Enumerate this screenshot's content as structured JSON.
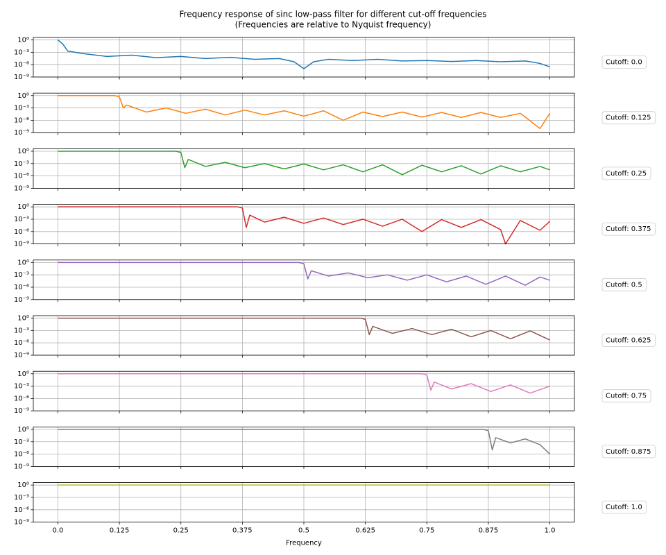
{
  "chart_data": [
    {
      "type": "line",
      "title": "Frequency response of sinc low-pass filter for different cut-off frequencies",
      "subtitle": "(Frequencies are relative to Nyquist frequency)",
      "log_y": true,
      "grid": true,
      "legend": "right",
      "xlim": [
        -0.05,
        1.05
      ],
      "xticks": [
        0,
        0.125,
        0.25,
        0.375,
        0.5,
        0.625,
        0.75,
        0.875,
        1
      ],
      "ylim": [
        1e-09,
        4
      ],
      "yticks": [
        {
          "value": 1,
          "label": "10⁰"
        },
        {
          "value": 0.001,
          "label": "10⁻³"
        },
        {
          "value": 1e-06,
          "label": "10⁻⁶"
        },
        {
          "value": 1e-09,
          "label": "10⁻⁹"
        }
      ],
      "x": [
        0,
        0.01,
        0.02,
        0.05,
        0.1,
        0.15,
        0.2,
        0.25,
        0.3,
        0.35,
        0.4,
        0.45,
        0.48,
        0.5,
        0.52,
        0.55,
        0.6,
        0.65,
        0.7,
        0.75,
        0.8,
        0.85,
        0.9,
        0.95,
        0.98,
        1.0
      ],
      "series": [
        {
          "name": "Cutoff: 0.0",
          "color": "#1f77b4",
          "values": [
            1,
            0.1,
            0.002,
            0.0005,
            0.0001,
            0.0002,
            5e-05,
            0.0001,
            3e-05,
            6e-05,
            2e-05,
            3e-05,
            5e-06,
            1e-07,
            5e-06,
            2e-05,
            1e-05,
            2e-05,
            8e-06,
            1e-05,
            6e-06,
            1e-05,
            5e-06,
            8e-06,
            2e-06,
            3e-07
          ]
        }
      ]
    },
    {
      "type": "line",
      "log_y": true,
      "grid": true,
      "legend": "right",
      "xlim": [
        -0.05,
        1.05
      ],
      "xticks": [
        0,
        0.125,
        0.25,
        0.375,
        0.5,
        0.625,
        0.75,
        0.875,
        1
      ],
      "ylim": [
        1e-09,
        4
      ],
      "yticks": [
        {
          "value": 1,
          "label": "10⁰"
        },
        {
          "value": 0.001,
          "label": "10⁻³"
        },
        {
          "value": 1e-06,
          "label": "10⁻⁶"
        },
        {
          "value": 1e-09,
          "label": "10⁻⁹"
        }
      ],
      "x": [
        0,
        0.115,
        0.125,
        0.133,
        0.14,
        0.18,
        0.22,
        0.26,
        0.3,
        0.34,
        0.38,
        0.42,
        0.46,
        0.5,
        0.54,
        0.58,
        0.62,
        0.66,
        0.7,
        0.74,
        0.78,
        0.82,
        0.86,
        0.9,
        0.94,
        0.98,
        1.0
      ],
      "series": [
        {
          "name": "Cutoff: 0.125",
          "color": "#ff7f0e",
          "values": [
            1,
            1,
            0.5,
            0.001,
            0.005,
            0.0001,
            0.001,
            5e-05,
            0.0005,
            2e-05,
            0.0003,
            2e-05,
            0.0002,
            1e-05,
            0.0002,
            1e-06,
            0.0001,
            8e-06,
            0.0001,
            6e-06,
            8e-05,
            5e-06,
            8e-05,
            5e-06,
            5e-05,
            1e-08,
            5e-05
          ]
        }
      ]
    },
    {
      "type": "line",
      "log_y": true,
      "grid": true,
      "legend": "right",
      "xlim": [
        -0.05,
        1.05
      ],
      "xticks": [
        0,
        0.125,
        0.25,
        0.375,
        0.5,
        0.625,
        0.75,
        0.875,
        1
      ],
      "ylim": [
        1e-09,
        4
      ],
      "yticks": [
        {
          "value": 1,
          "label": "10⁰"
        },
        {
          "value": 0.001,
          "label": "10⁻³"
        },
        {
          "value": 1e-06,
          "label": "10⁻⁶"
        },
        {
          "value": 1e-09,
          "label": "10⁻⁹"
        }
      ],
      "x": [
        0,
        0.24,
        0.25,
        0.258,
        0.265,
        0.3,
        0.34,
        0.38,
        0.42,
        0.46,
        0.5,
        0.54,
        0.58,
        0.62,
        0.66,
        0.7,
        0.74,
        0.78,
        0.82,
        0.86,
        0.9,
        0.94,
        0.98,
        1.0
      ],
      "series": [
        {
          "name": "Cutoff: 0.25",
          "color": "#2ca02c",
          "values": [
            1,
            1,
            0.5,
            0.0001,
            0.01,
            0.0002,
            0.002,
            0.0001,
            0.001,
            5e-05,
            0.0008,
            3e-05,
            0.0005,
            1e-05,
            0.0005,
            2e-06,
            0.0004,
            1e-05,
            0.0003,
            3e-06,
            0.0003,
            1e-05,
            0.0002,
            3e-05
          ]
        }
      ]
    },
    {
      "type": "line",
      "log_y": true,
      "grid": true,
      "legend": "right",
      "xlim": [
        -0.05,
        1.05
      ],
      "xticks": [
        0,
        0.125,
        0.25,
        0.375,
        0.5,
        0.625,
        0.75,
        0.875,
        1
      ],
      "ylim": [
        1e-09,
        4
      ],
      "yticks": [
        {
          "value": 1,
          "label": "10⁰"
        },
        {
          "value": 0.001,
          "label": "10⁻³"
        },
        {
          "value": 1e-06,
          "label": "10⁻⁶"
        },
        {
          "value": 1e-09,
          "label": "10⁻⁹"
        }
      ],
      "x": [
        0,
        0.365,
        0.375,
        0.383,
        0.39,
        0.42,
        0.46,
        0.5,
        0.54,
        0.58,
        0.62,
        0.66,
        0.7,
        0.74,
        0.78,
        0.82,
        0.86,
        0.9,
        0.91,
        0.94,
        0.98,
        1.0
      ],
      "series": [
        {
          "name": "Cutoff: 0.375",
          "color": "#d62728",
          "values": [
            1,
            1,
            0.5,
            1e-05,
            0.01,
            0.0002,
            0.003,
            0.0001,
            0.002,
            5e-05,
            0.001,
            2e-05,
            0.001,
            1e-06,
            0.0008,
            1e-05,
            0.0008,
            3e-06,
            1e-09,
            0.0005,
            2e-06,
            0.0003
          ]
        }
      ]
    },
    {
      "type": "line",
      "log_y": true,
      "grid": true,
      "legend": "right",
      "xlim": [
        -0.05,
        1.05
      ],
      "xticks": [
        0,
        0.125,
        0.25,
        0.375,
        0.5,
        0.625,
        0.75,
        0.875,
        1
      ],
      "ylim": [
        1e-09,
        4
      ],
      "yticks": [
        {
          "value": 1,
          "label": "10⁰"
        },
        {
          "value": 0.001,
          "label": "10⁻³"
        },
        {
          "value": 1e-06,
          "label": "10⁻⁶"
        },
        {
          "value": 1e-09,
          "label": "10⁻⁹"
        }
      ],
      "x": [
        0,
        0.49,
        0.5,
        0.508,
        0.515,
        0.55,
        0.59,
        0.63,
        0.67,
        0.71,
        0.75,
        0.79,
        0.83,
        0.87,
        0.91,
        0.95,
        0.98,
        1.0
      ],
      "series": [
        {
          "name": "Cutoff: 0.5",
          "color": "#9467bd",
          "values": [
            1,
            1,
            0.5,
            0.0001,
            0.01,
            0.0005,
            0.003,
            0.0002,
            0.001,
            5e-05,
            0.001,
            2e-05,
            0.0005,
            5e-06,
            0.0005,
            3e-06,
            0.0003,
            5e-05
          ]
        }
      ]
    },
    {
      "type": "line",
      "log_y": true,
      "grid": true,
      "legend": "right",
      "xlim": [
        -0.05,
        1.05
      ],
      "xticks": [
        0,
        0.125,
        0.25,
        0.375,
        0.5,
        0.625,
        0.75,
        0.875,
        1
      ],
      "ylim": [
        1e-09,
        4
      ],
      "yticks": [
        {
          "value": 1,
          "label": "10⁰"
        },
        {
          "value": 0.001,
          "label": "10⁻³"
        },
        {
          "value": 1e-06,
          "label": "10⁻⁶"
        },
        {
          "value": 1e-09,
          "label": "10⁻⁹"
        }
      ],
      "x": [
        0,
        0.615,
        0.625,
        0.633,
        0.64,
        0.68,
        0.72,
        0.76,
        0.8,
        0.84,
        0.88,
        0.92,
        0.96,
        1.0
      ],
      "series": [
        {
          "name": "Cutoff: 0.625",
          "color": "#8c564b",
          "values": [
            1,
            1,
            0.5,
            0.0001,
            0.01,
            0.0002,
            0.003,
            0.0001,
            0.002,
            3e-05,
            0.001,
            1e-05,
            0.0008,
            5e-06
          ]
        }
      ]
    },
    {
      "type": "line",
      "log_y": true,
      "grid": true,
      "legend": "right",
      "xlim": [
        -0.05,
        1.05
      ],
      "xticks": [
        0,
        0.125,
        0.25,
        0.375,
        0.5,
        0.625,
        0.75,
        0.875,
        1
      ],
      "ylim": [
        1e-09,
        4
      ],
      "yticks": [
        {
          "value": 1,
          "label": "10⁰"
        },
        {
          "value": 0.001,
          "label": "10⁻³"
        },
        {
          "value": 1e-06,
          "label": "10⁻⁶"
        },
        {
          "value": 1e-09,
          "label": "10⁻⁹"
        }
      ],
      "x": [
        0,
        0.74,
        0.75,
        0.758,
        0.765,
        0.8,
        0.84,
        0.88,
        0.92,
        0.96,
        1.0
      ],
      "series": [
        {
          "name": "Cutoff: 0.75",
          "color": "#e377c2",
          "values": [
            1,
            1,
            0.5,
            0.0001,
            0.01,
            0.0002,
            0.004,
            5e-05,
            0.002,
            2e-05,
            0.001
          ]
        }
      ]
    },
    {
      "type": "line",
      "log_y": true,
      "grid": true,
      "legend": "right",
      "xlim": [
        -0.05,
        1.05
      ],
      "xticks": [
        0,
        0.125,
        0.25,
        0.375,
        0.5,
        0.625,
        0.75,
        0.875,
        1
      ],
      "ylim": [
        1e-09,
        4
      ],
      "yticks": [
        {
          "value": 1,
          "label": "10⁰"
        },
        {
          "value": 0.001,
          "label": "10⁻³"
        },
        {
          "value": 1e-06,
          "label": "10⁻⁶"
        },
        {
          "value": 1e-09,
          "label": "10⁻⁹"
        }
      ],
      "x": [
        0,
        0.865,
        0.875,
        0.883,
        0.89,
        0.92,
        0.95,
        0.98,
        1.0
      ],
      "series": [
        {
          "name": "Cutoff: 0.875",
          "color": "#7f7f7f",
          "values": [
            1,
            1,
            0.5,
            1e-05,
            0.01,
            0.0005,
            0.005,
            0.0002,
            1e-06
          ]
        }
      ]
    },
    {
      "type": "line",
      "log_y": true,
      "grid": true,
      "legend": "right",
      "xlabel": "Frequency",
      "xlim": [
        -0.05,
        1.05
      ],
      "xticks": [
        {
          "value": 0,
          "label": "0.0"
        },
        0.125,
        0.25,
        0.375,
        0.5,
        0.625,
        0.75,
        0.875,
        {
          "value": 1,
          "label": "1.0"
        }
      ],
      "ylim": [
        1e-09,
        4
      ],
      "yticks": [
        {
          "value": 1,
          "label": "10⁰"
        },
        {
          "value": 0.001,
          "label": "10⁻³"
        },
        {
          "value": 1e-06,
          "label": "10⁻⁶"
        },
        {
          "value": 1e-09,
          "label": "10⁻⁹"
        }
      ],
      "x": [
        0,
        1.0
      ],
      "series": [
        {
          "name": "Cutoff: 1.0",
          "color": "#bcbd22",
          "values": [
            1,
            1
          ]
        }
      ]
    }
  ]
}
